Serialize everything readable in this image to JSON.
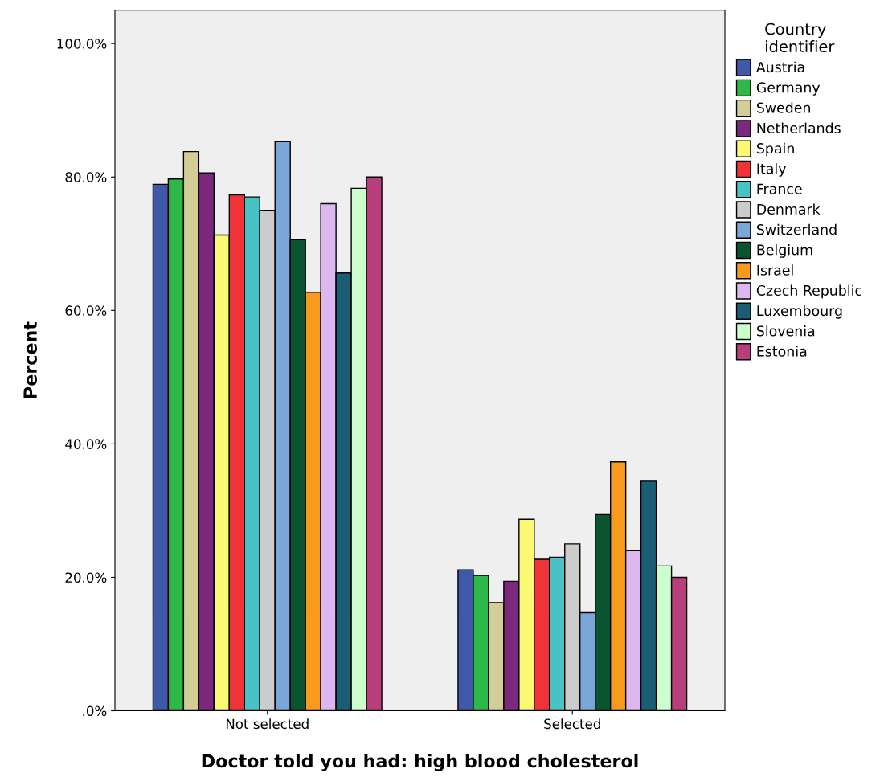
{
  "chart_data": {
    "type": "bar",
    "xlabel": "Doctor told you had: high blood cholesterol",
    "ylabel": "Percent",
    "legend_title": "Country\nidentifier",
    "categories": [
      "Not selected",
      "Selected"
    ],
    "series": [
      {
        "name": "Austria",
        "color": "#3f58a8",
        "values": [
          78.9,
          21.1
        ]
      },
      {
        "name": "Germany",
        "color": "#2eb848",
        "values": [
          79.7,
          20.3
        ]
      },
      {
        "name": "Sweden",
        "color": "#d3ce97",
        "values": [
          83.8,
          16.2
        ]
      },
      {
        "name": "Netherlands",
        "color": "#7b287d",
        "values": [
          80.6,
          19.4
        ]
      },
      {
        "name": "Spain",
        "color": "#fbf873",
        "values": [
          71.3,
          28.7
        ]
      },
      {
        "name": "Italy",
        "color": "#ef3338",
        "values": [
          77.3,
          22.7
        ]
      },
      {
        "name": "France",
        "color": "#48c2c5",
        "values": [
          77.0,
          23.0
        ]
      },
      {
        "name": "Denmark",
        "color": "#cccccc",
        "values": [
          75.0,
          25.0
        ]
      },
      {
        "name": "Switzerland",
        "color": "#7ba7d8",
        "values": [
          85.3,
          14.7
        ]
      },
      {
        "name": "Belgium",
        "color": "#0a5430",
        "values": [
          70.6,
          29.4
        ]
      },
      {
        "name": "Israel",
        "color": "#f89a1d",
        "values": [
          62.7,
          37.3
        ]
      },
      {
        "name": "Czech Republic",
        "color": "#ddb8f0",
        "values": [
          76.0,
          24.0
        ]
      },
      {
        "name": "Luxembourg",
        "color": "#1b5d74",
        "values": [
          65.6,
          34.4
        ]
      },
      {
        "name": "Slovenia",
        "color": "#ccffcc",
        "values": [
          78.3,
          21.7
        ]
      },
      {
        "name": "Estonia",
        "color": "#b93f7c",
        "values": [
          80.0,
          20.0
        ]
      }
    ],
    "ylim": [
      0,
      105
    ],
    "yticks": [
      {
        "value": 0,
        "label": ".0%"
      },
      {
        "value": 20,
        "label": "20.0%"
      },
      {
        "value": 40,
        "label": "40.0%"
      },
      {
        "value": 60,
        "label": "60.0%"
      },
      {
        "value": 80,
        "label": "80.0%"
      },
      {
        "value": 100,
        "label": "100.0%"
      }
    ],
    "grid": false,
    "legend": "right"
  }
}
